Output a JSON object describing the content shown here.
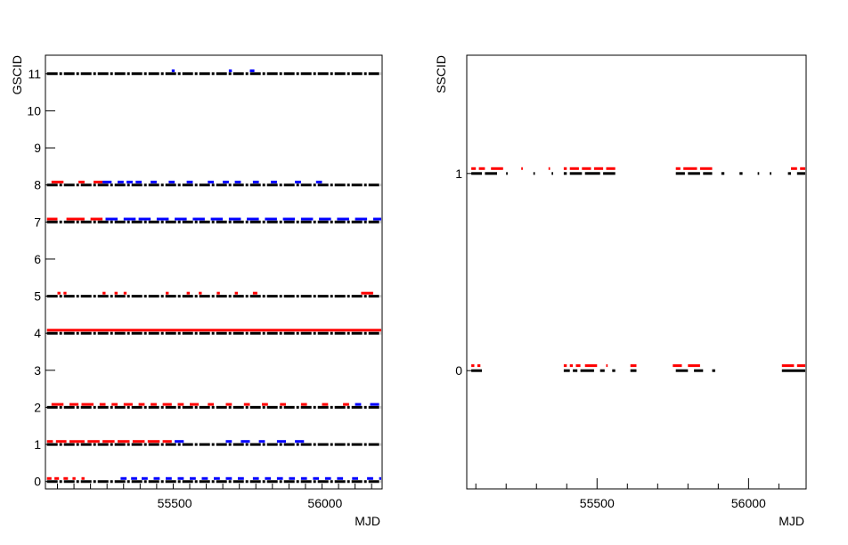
{
  "chart_data": [
    {
      "type": "scatter",
      "title": "",
      "xlabel": "MJD",
      "ylabel": "GSCID",
      "xlim": [
        55070,
        56190
      ],
      "ylim": [
        -0.2,
        11.5
      ],
      "x_ticks": [
        55500,
        56000
      ],
      "y_ticks": [
        0,
        1,
        2,
        3,
        4,
        5,
        6,
        7,
        8,
        9,
        10,
        11
      ],
      "grid": false,
      "legend": "none",
      "colors": {
        "black": "#000000",
        "red": "#ff0000",
        "blue": "#0000ff"
      },
      "series": [
        {
          "color": "#000000",
          "y_offset": 0.0,
          "segments": [
            [
              0,
              [
                [
                  55075,
                  56190
                ]
              ]
            ],
            [
              1,
              [
                [
                  55075,
                  56190
                ]
              ]
            ],
            [
              2,
              [
                [
                  55075,
                  56190
                ]
              ]
            ],
            [
              4,
              [
                [
                  55075,
                  56190
                ]
              ]
            ],
            [
              5,
              [
                [
                  55075,
                  56190
                ]
              ]
            ],
            [
              7,
              [
                [
                  55075,
                  56190
                ]
              ]
            ],
            [
              8,
              [
                [
                  55075,
                  56190
                ]
              ]
            ],
            [
              11,
              [
                [
                  55075,
                  56190
                ]
              ]
            ]
          ]
        },
        {
          "color": "#ff0000",
          "y_offset": 0.08,
          "segments": [
            [
              0,
              [
                [
                  55075,
                  55090
                ],
                [
                  55100,
                  55115
                ],
                [
                  55130,
                  55145
                ],
                [
                  55160,
                  55170
                ],
                [
                  55190,
                  55200
                ]
              ]
            ],
            [
              1,
              [
                [
                  55075,
                  55095
                ],
                [
                  55105,
                  55140
                ],
                [
                  55150,
                  55200
                ],
                [
                  55210,
                  55250
                ],
                [
                  55260,
                  55300
                ],
                [
                  55310,
                  55350
                ],
                [
                  55360,
                  55400
                ],
                [
                  55410,
                  55450
                ],
                [
                  55460,
                  55490
                ]
              ]
            ],
            [
              2,
              [
                [
                  55090,
                  55130
                ],
                [
                  55150,
                  55180
                ],
                [
                  55190,
                  55230
                ],
                [
                  55250,
                  55270
                ],
                [
                  55290,
                  55310
                ],
                [
                  55330,
                  55360
                ],
                [
                  55380,
                  55400
                ],
                [
                  55420,
                  55440
                ],
                [
                  55460,
                  55490
                ],
                [
                  55510,
                  55530
                ],
                [
                  55550,
                  55580
                ],
                [
                  55610,
                  55630
                ],
                [
                  55670,
                  55690
                ],
                [
                  55730,
                  55750
                ],
                [
                  55790,
                  55810
                ],
                [
                  55850,
                  55870
                ],
                [
                  55920,
                  55940
                ],
                [
                  55990,
                  56010
                ],
                [
                  56060,
                  56080
                ]
              ]
            ],
            [
              4,
              [
                [
                  55075,
                  56190
                ]
              ]
            ],
            [
              5,
              [
                [
                  55110,
                  55120
                ],
                [
                  55130,
                  55140
                ],
                [
                  55260,
                  55270
                ],
                [
                  55300,
                  55310
                ],
                [
                  55330,
                  55340
                ],
                [
                  55470,
                  55480
                ],
                [
                  55540,
                  55550
                ],
                [
                  55580,
                  55590
                ],
                [
                  55640,
                  55650
                ],
                [
                  55700,
                  55710
                ],
                [
                  55760,
                  55775
                ],
                [
                  56120,
                  56160
                ]
              ]
            ],
            [
              7,
              [
                [
                  55075,
                  55110
                ],
                [
                  55140,
                  55200
                ],
                [
                  55220,
                  55260
                ]
              ]
            ],
            [
              8,
              [
                [
                  55090,
                  55130
                ],
                [
                  55180,
                  55200
                ],
                [
                  55230,
                  55260
                ]
              ]
            ]
          ]
        },
        {
          "color": "#0000ff",
          "y_offset": 0.08,
          "segments": [
            [
              0,
              [
                [
                  55320,
                  55340
                ],
                [
                  55355,
                  55375
                ],
                [
                  55390,
                  55410
                ],
                [
                  55430,
                  55450
                ],
                [
                  55470,
                  55490
                ],
                [
                  55510,
                  55530
                ],
                [
                  55550,
                  55570
                ],
                [
                  55590,
                  55610
                ],
                [
                  55630,
                  55650
                ],
                [
                  55670,
                  55690
                ],
                [
                  55710,
                  55730
                ],
                [
                  55760,
                  55780
                ],
                [
                  55800,
                  55820
                ],
                [
                  55840,
                  55860
                ],
                [
                  55880,
                  55900
                ],
                [
                  55920,
                  55940
                ],
                [
                  55960,
                  55980
                ],
                [
                  56000,
                  56020
                ],
                [
                  56040,
                  56060
                ],
                [
                  56090,
                  56110
                ],
                [
                  56140,
                  56160
                ],
                [
                  56180,
                  56190
                ]
              ]
            ],
            [
              1,
              [
                [
                  55500,
                  55530
                ],
                [
                  55670,
                  55690
                ],
                [
                  55720,
                  55750
                ],
                [
                  55780,
                  55800
                ],
                [
                  55840,
                  55870
                ],
                [
                  55900,
                  55930
                ]
              ]
            ],
            [
              2,
              [
                [
                  56100,
                  56120
                ],
                [
                  56150,
                  56180
                ]
              ]
            ],
            [
              7,
              [
                [
                  55270,
                  55310
                ],
                [
                  55330,
                  55370
                ],
                [
                  55380,
                  55420
                ],
                [
                  55440,
                  55480
                ],
                [
                  55500,
                  55540
                ],
                [
                  55560,
                  55600
                ],
                [
                  55620,
                  55660
                ],
                [
                  55680,
                  55720
                ],
                [
                  55740,
                  55780
                ],
                [
                  55800,
                  55840
                ],
                [
                  55860,
                  55900
                ],
                [
                  55920,
                  55960
                ],
                [
                  55980,
                  56020
                ],
                [
                  56040,
                  56080
                ],
                [
                  56100,
                  56140
                ],
                [
                  56160,
                  56190
                ]
              ]
            ],
            [
              8,
              [
                [
                  55260,
                  55290
                ],
                [
                  55310,
                  55330
                ],
                [
                  55340,
                  55360
                ],
                [
                  55370,
                  55390
                ],
                [
                  55420,
                  55440
                ],
                [
                  55480,
                  55500
                ],
                [
                  55540,
                  55560
                ],
                [
                  55610,
                  55630
                ],
                [
                  55660,
                  55680
                ],
                [
                  55700,
                  55720
                ],
                [
                  55760,
                  55780
                ],
                [
                  55820,
                  55840
                ],
                [
                  55900,
                  55920
                ],
                [
                  55970,
                  55990
                ]
              ]
            ],
            [
              11,
              [
                [
                  55490,
                  55500
                ],
                [
                  55680,
                  55690
                ],
                [
                  55750,
                  55765
                ]
              ]
            ]
          ]
        }
      ]
    },
    {
      "type": "scatter",
      "title": "",
      "xlabel": "MJD",
      "ylabel": "SSCID",
      "xlim": [
        55070,
        56190
      ],
      "ylim": [
        -0.6,
        1.6
      ],
      "x_ticks": [
        55500,
        56000
      ],
      "y_ticks": [
        0,
        1
      ],
      "grid": false,
      "legend": "none",
      "colors": {
        "black": "#000000",
        "red": "#ff0000"
      },
      "series": [
        {
          "color": "#000000",
          "y_offset": 0.0,
          "segments": [
            [
              0,
              [
                [
                  55085,
                  55120
                ],
                [
                  55390,
                  55410
                ],
                [
                  55420,
                  55435
                ],
                [
                  55445,
                  55490
                ],
                [
                  55510,
                  55525
                ],
                [
                  55550,
                  55560
                ],
                [
                  55610,
                  55630
                ],
                [
                  55760,
                  55800
                ],
                [
                  55820,
                  55850
                ],
                [
                  55880,
                  55890
                ],
                [
                  56110,
                  56190
                ]
              ]
            ],
            [
              1,
              [
                [
                  55085,
                  55120
                ],
                [
                  55130,
                  55170
                ],
                [
                  55200,
                  55205
                ],
                [
                  55290,
                  55295
                ],
                [
                  55350,
                  55355
                ],
                [
                  55390,
                  55400
                ],
                [
                  55410,
                  55450
                ],
                [
                  55460,
                  55510
                ],
                [
                  55520,
                  55560
                ],
                [
                  55760,
                  55790
                ],
                [
                  55800,
                  55840
                ],
                [
                  55850,
                  55880
                ],
                [
                  55910,
                  55920
                ],
                [
                  55970,
                  55980
                ],
                [
                  56030,
                  56035
                ],
                [
                  56070,
                  56075
                ],
                [
                  56130,
                  56140
                ],
                [
                  56160,
                  56190
                ]
              ]
            ]
          ]
        },
        {
          "color": "#ff0000",
          "y_offset": 0.025,
          "segments": [
            [
              0,
              [
                [
                  55085,
                  55095
                ],
                [
                  55105,
                  55115
                ],
                [
                  55390,
                  55400
                ],
                [
                  55410,
                  55420
                ],
                [
                  55430,
                  55445
                ],
                [
                  55460,
                  55500
                ],
                [
                  55530,
                  55535
                ],
                [
                  55610,
                  55630
                ],
                [
                  55750,
                  55780
                ],
                [
                  55800,
                  55840
                ],
                [
                  56110,
                  56150
                ],
                [
                  56160,
                  56190
                ]
              ]
            ],
            [
              1,
              [
                [
                  55085,
                  55100
                ],
                [
                  55110,
                  55130
                ],
                [
                  55150,
                  55190
                ],
                [
                  55250,
                  55255
                ],
                [
                  55340,
                  55345
                ],
                [
                  55390,
                  55400
                ],
                [
                  55410,
                  55440
                ],
                [
                  55450,
                  55480
                ],
                [
                  55490,
                  55520
                ],
                [
                  55530,
                  55560
                ],
                [
                  55760,
                  55775
                ],
                [
                  55785,
                  55830
                ],
                [
                  55840,
                  55880
                ],
                [
                  56140,
                  56160
                ],
                [
                  56170,
                  56190
                ]
              ]
            ]
          ]
        }
      ]
    }
  ]
}
